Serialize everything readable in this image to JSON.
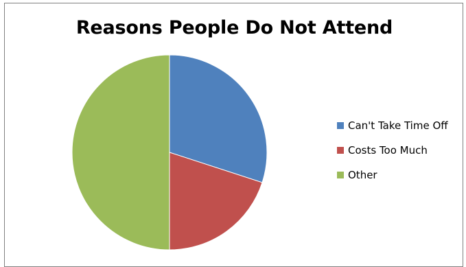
{
  "chart_data": {
    "type": "pie",
    "title": "Reasons People Do Not Attend",
    "categories": [
      "Can't Take Time Off",
      "Costs Too Much",
      "Other"
    ],
    "values": [
      30,
      20,
      50
    ],
    "colors": [
      "#4f81bd",
      "#c0504d",
      "#9bbb59"
    ],
    "start_angle_deg": 0,
    "direction": "clockwise",
    "legend_position": "right"
  }
}
